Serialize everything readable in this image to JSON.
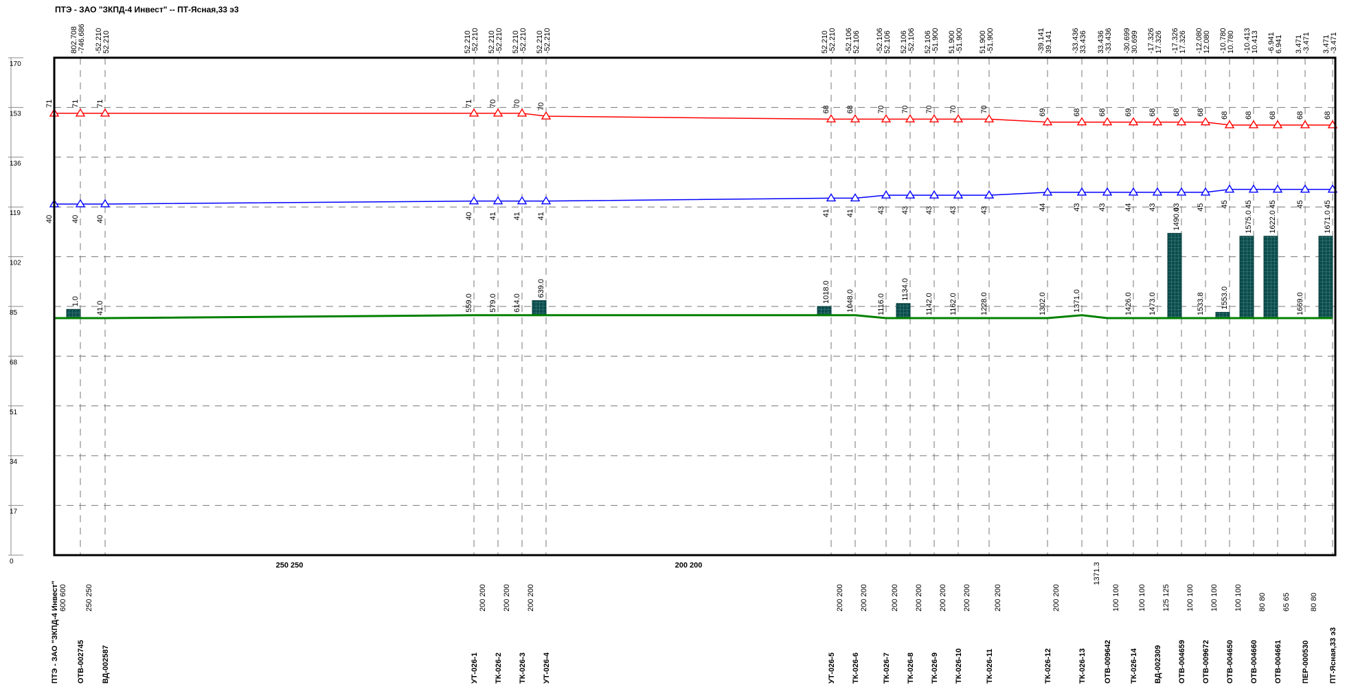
{
  "window": {
    "title": "ПТЭ - ЗАО \"ЗКПД-4 Инвест\" -- ПТ-Ясная,33 э3"
  },
  "chart_data": {
    "type": "line",
    "title": "ПТЭ - ЗАО \"ЗКПД-4 Инвест\" -- ПТ-Ясная,33 э3",
    "ylim": [
      0,
      170
    ],
    "yticks": [
      "0",
      "17",
      "34",
      "51",
      "68",
      "85",
      "102",
      "119",
      "136",
      "153",
      "170"
    ],
    "grid": true,
    "series_colors": {
      "supply": "#ff0000",
      "return": "#0000ff",
      "ground": "#008000",
      "bars": "#0b4d4d"
    },
    "nodes": [
      {
        "name": "ПТЭ - ЗАО \"ЗКПД-4 Инвест\"",
        "x": 0,
        "supply": 151,
        "return": 120,
        "supply_label": "71",
        "return_label": "40",
        "ground": 81,
        "bar": null,
        "bar_label": "",
        "flows": []
      },
      {
        "name": "ОТВ-002745",
        "x": 1,
        "supply": 151,
        "return": 120,
        "supply_label": "71",
        "return_label": "40",
        "ground": 81,
        "bar": 84,
        "bar_label": "1.0",
        "flows": [
          "802.708",
          "-746.686"
        ]
      },
      {
        "name": "ВД-002587",
        "x": 2,
        "supply": 151,
        "return": 120,
        "supply_label": "71",
        "return_label": "40",
        "ground": 81,
        "bar": null,
        "bar_label": "41.0",
        "flows": [
          "-52.210",
          "52.210"
        ]
      },
      {
        "name": "УТ-026-1",
        "x": 3,
        "supply": 151,
        "return": 121,
        "supply_label": "71",
        "return_label": "40",
        "ground": 82,
        "bar": null,
        "bar_label": "559.0",
        "flows": [
          "52.210",
          "-52.210"
        ]
      },
      {
        "name": "ТК-026-2",
        "x": 4,
        "supply": 151,
        "return": 121,
        "supply_label": "70",
        "return_label": "41",
        "ground": 82,
        "bar": null,
        "bar_label": "579.0",
        "flows": [
          "52.210",
          "-52.210"
        ]
      },
      {
        "name": "ТК-026-3",
        "x": 5,
        "supply": 151,
        "return": 121,
        "supply_label": "70",
        "return_label": "41",
        "ground": 82,
        "bar": null,
        "bar_label": "614.0",
        "flows": [
          "52.210",
          "-52.210"
        ]
      },
      {
        "name": "УТ-026-4",
        "x": 6,
        "supply": 150,
        "return": 121,
        "supply_label": "70",
        "return_label": "41",
        "ground": 82,
        "bar": 87,
        "bar_label": "639.0",
        "flows": [
          "52.210",
          "-52.210"
        ]
      },
      {
        "name": "УТ-026-5",
        "x": 7,
        "supply": 149,
        "return": 122,
        "supply_label": "68",
        "return_label": "41",
        "ground": 82,
        "bar": 85,
        "bar_label": "1018.0",
        "flows": [
          "52.210",
          "-52.210"
        ]
      },
      {
        "name": "ТК-026-6",
        "x": 8,
        "supply": 149,
        "return": 122,
        "supply_label": "68",
        "return_label": "41",
        "ground": 82,
        "bar": null,
        "bar_label": "1048.0",
        "flows": [
          "-52.106",
          "52.106"
        ]
      },
      {
        "name": "ТК-026-7",
        "x": 9,
        "supply": 149,
        "return": 123,
        "supply_label": "70",
        "return_label": "43",
        "ground": 81,
        "bar": null,
        "bar_label": "1116.0",
        "flows": [
          "-52.106",
          "52.106"
        ]
      },
      {
        "name": "ТК-026-8",
        "x": 10,
        "supply": 149,
        "return": 123,
        "supply_label": "70",
        "return_label": "43",
        "ground": 81,
        "bar": 86,
        "bar_label": "1134.0",
        "flows": [
          "52.106",
          "-52.106"
        ]
      },
      {
        "name": "ТК-026-9",
        "x": 11,
        "supply": 149,
        "return": 123,
        "supply_label": "70",
        "return_label": "43",
        "ground": 81,
        "bar": null,
        "bar_label": "1142.0",
        "flows": [
          "52.106",
          "-51.900"
        ]
      },
      {
        "name": "ТК-026-10",
        "x": 12,
        "supply": 149,
        "return": 123,
        "supply_label": "70",
        "return_label": "43",
        "ground": 81,
        "bar": null,
        "bar_label": "1162.0",
        "flows": [
          "51.900",
          "-51.900"
        ]
      },
      {
        "name": "ТК-026-11",
        "x": 13,
        "supply": 149,
        "return": 123,
        "supply_label": "70",
        "return_label": "43",
        "ground": 81,
        "bar": null,
        "bar_label": "1228.0",
        "flows": [
          "51.900",
          "-51.900"
        ]
      },
      {
        "name": "ТК-026-12",
        "x": 14,
        "supply": 148,
        "return": 124,
        "supply_label": "69",
        "return_label": "44",
        "ground": 81,
        "bar": null,
        "bar_label": "1302.0",
        "flows": [
          "-39.141",
          "39.141"
        ]
      },
      {
        "name": "ТК-026-13",
        "x": 15,
        "supply": 148,
        "return": 124,
        "supply_label": "68",
        "return_label": "43",
        "ground": 82,
        "bar": null,
        "bar_label": "1371.0",
        "flows": [
          "-33.436",
          "33.436"
        ]
      },
      {
        "name": "ОТВ-009642",
        "x": 16,
        "supply": 148,
        "return": 124,
        "supply_label": "68",
        "return_label": "43",
        "ground": 81,
        "bar": null,
        "bar_label": "",
        "flows": [
          "33.436",
          "-33.436"
        ]
      },
      {
        "name": "ТК-026-14",
        "x": 17,
        "supply": 148,
        "return": 124,
        "supply_label": "69",
        "return_label": "44",
        "ground": 81,
        "bar": null,
        "bar_label": "1426.0",
        "flows": [
          "-30.699",
          "30.699"
        ]
      },
      {
        "name": "ВД-002309",
        "x": 18,
        "supply": 148,
        "return": 124,
        "supply_label": "68",
        "return_label": "43",
        "ground": 81,
        "bar": null,
        "bar_label": "1473.0",
        "flows": [
          "-17.326",
          "17.326"
        ]
      },
      {
        "name": "ОТВ-004659",
        "x": 19,
        "supply": 148,
        "return": 124,
        "supply_label": "68",
        "return_label": "43",
        "ground": 81,
        "bar": 110,
        "bar_label": "1490.0",
        "flows": [
          "-17.326",
          "17.326"
        ]
      },
      {
        "name": "ОТВ-009672",
        "x": 20,
        "supply": 148,
        "return": 124,
        "supply_label": "68",
        "return_label": "45",
        "ground": 81,
        "bar": null,
        "bar_label": "1533.8",
        "flows": [
          "-12.080",
          "12.080"
        ]
      },
      {
        "name": "ОТВ-004650",
        "x": 21,
        "supply": 147,
        "return": 125,
        "supply_label": "68",
        "return_label": "45",
        "ground": 81,
        "bar": 83,
        "bar_label": "1553.0",
        "flows": [
          "-10.780",
          "10.780"
        ]
      },
      {
        "name": "ОТВ-004660",
        "x": 22,
        "supply": 147,
        "return": 125,
        "supply_label": "68",
        "return_label": "45",
        "ground": 81,
        "bar": 109,
        "bar_label": "1575.0",
        "flows": [
          "-10.413",
          "10.413"
        ]
      },
      {
        "name": "ОТВ-004661",
        "x": 23,
        "supply": 147,
        "return": 125,
        "supply_label": "68",
        "return_label": "45",
        "ground": 81,
        "bar": 109,
        "bar_label": "1622.0",
        "flows": [
          "-6.941",
          "6.941"
        ]
      },
      {
        "name": "ПЕР-000530",
        "x": 24,
        "supply": 147,
        "return": 125,
        "supply_label": "68",
        "return_label": "45",
        "ground": 81,
        "bar": null,
        "bar_label": "1669.0",
        "flows": [
          "3.471",
          "-3.471"
        ]
      },
      {
        "name": "ПТ-Ясная,33 э3",
        "x": 25,
        "supply": 147,
        "return": 125,
        "supply_label": "68",
        "return_label": "45",
        "ground": 81,
        "bar": 109,
        "bar_label": "1671.0",
        "flows": [
          "3.471",
          "-3.471"
        ]
      }
    ],
    "pipes": [
      {
        "label": "600 600",
        "after": 0
      },
      {
        "label": "250 250",
        "after": 1
      },
      {
        "label": "250 250",
        "after": 2,
        "mid": true
      },
      {
        "label": "200 200",
        "after": 3
      },
      {
        "label": "200 200",
        "after": 4
      },
      {
        "label": "200 200",
        "after": 5
      },
      {
        "label": "200 200",
        "after": 6,
        "mid": true
      },
      {
        "label": "200 200",
        "after": 7
      },
      {
        "label": "200 200",
        "after": 8
      },
      {
        "label": "200 200",
        "after": 9
      },
      {
        "label": "200 200",
        "after": 10
      },
      {
        "label": "200 200",
        "after": 11
      },
      {
        "label": "200 200",
        "after": 12
      },
      {
        "label": "200 200",
        "after": 13
      },
      {
        "label": "200 200",
        "after": 14
      },
      {
        "label": "100 100",
        "after": 16
      },
      {
        "label": "100 100",
        "after": 17
      },
      {
        "label": "125 125",
        "after": 18
      },
      {
        "label": "100 100",
        "after": 19
      },
      {
        "label": "100 100",
        "after": 20
      },
      {
        "label": "100 100",
        "after": 21
      },
      {
        "label": "80 80",
        "after": 22
      },
      {
        "label": "65 65",
        "after": 23
      },
      {
        "label": "80 80",
        "after": 24
      }
    ],
    "extra_label": "1371.3"
  }
}
